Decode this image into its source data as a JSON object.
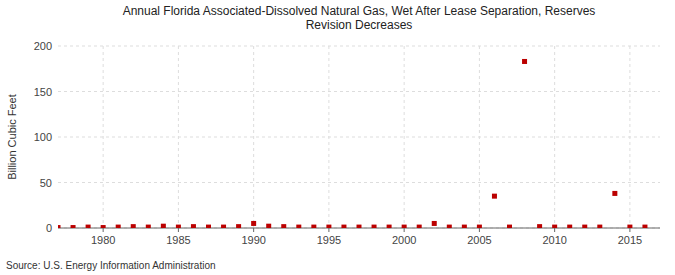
{
  "chart_data": {
    "type": "scatter",
    "title": "Annual Florida Associated-Dissolved Natural Gas, Wet After Lease Separation, Reserves\nRevision Decreases",
    "y_label": "Billion Cubic Feet",
    "source": "Source: U.S. Energy Information Administration",
    "x": [
      1977,
      1978,
      1979,
      1980,
      1981,
      1982,
      1983,
      1984,
      1985,
      1986,
      1987,
      1988,
      1989,
      1990,
      1991,
      1992,
      1993,
      1994,
      1995,
      1996,
      1997,
      1998,
      1999,
      2000,
      2001,
      2002,
      2003,
      2004,
      2005,
      2006,
      2007,
      2008,
      2009,
      2010,
      2011,
      2012,
      2013,
      2014,
      2015,
      2016
    ],
    "values": [
      0.5,
      0.5,
      1.0,
      0.5,
      1.0,
      1.5,
      1.0,
      2.0,
      1.0,
      1.5,
      1.0,
      1.0,
      1.5,
      5.0,
      2.0,
      1.5,
      1.0,
      1.0,
      1.0,
      1.0,
      1.0,
      1.0,
      1.0,
      1.0,
      1.0,
      5.0,
      1.0,
      1.0,
      1.0,
      35.0,
      1.0,
      183.0,
      1.5,
      1.0,
      1.0,
      1.0,
      1.0,
      38.0,
      1.0,
      1.0
    ],
    "color": "#bb0000",
    "marker": "square",
    "xlim": [
      1977,
      2017
    ],
    "ylim": [
      0,
      200
    ],
    "xticks": [
      1980,
      1985,
      1990,
      1995,
      2000,
      2005,
      2010,
      2015
    ],
    "yticks": [
      0,
      50,
      100,
      150,
      200
    ],
    "grid": true
  }
}
